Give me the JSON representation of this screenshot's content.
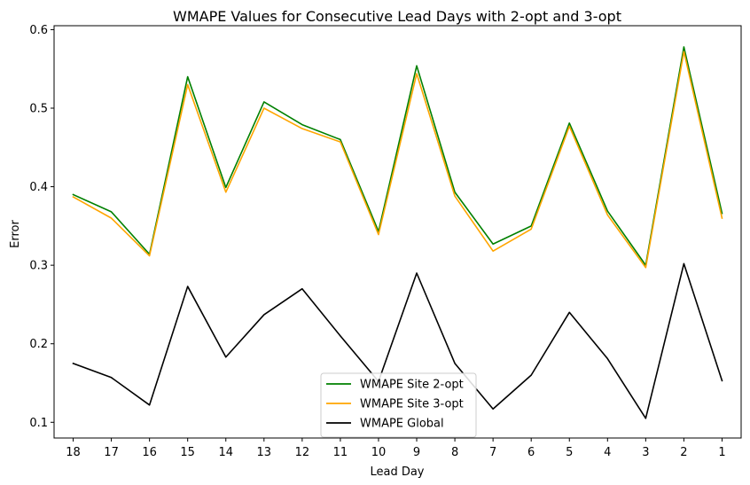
{
  "chart_data": {
    "type": "line",
    "title": "WMAPE Values for Consecutive Lead Days with 2-opt and 3-opt",
    "xlabel": "Lead Day",
    "ylabel": "Error",
    "categories": [
      "18",
      "17",
      "16",
      "15",
      "14",
      "13",
      "12",
      "11",
      "10",
      "9",
      "8",
      "7",
      "6",
      "5",
      "4",
      "3",
      "2",
      "1"
    ],
    "ylim": [
      0.08,
      0.605
    ],
    "yticks": [
      0.1,
      0.2,
      0.3,
      0.4,
      0.5,
      0.6
    ],
    "ytick_labels": [
      "0.1",
      "0.2",
      "0.3",
      "0.4",
      "0.5",
      "0.6"
    ],
    "grid": false,
    "legend_position": "bottom-center",
    "series": [
      {
        "name": "WMAPE Site 2-opt",
        "color": "#008000",
        "values": [
          0.39,
          0.368,
          0.314,
          0.54,
          0.399,
          0.508,
          0.479,
          0.46,
          0.343,
          0.554,
          0.393,
          0.327,
          0.35,
          0.481,
          0.369,
          0.3,
          0.578,
          0.366
        ]
      },
      {
        "name": "WMAPE Site 3-opt",
        "color": "#FFA500",
        "values": [
          0.387,
          0.36,
          0.312,
          0.53,
          0.393,
          0.5,
          0.474,
          0.457,
          0.339,
          0.544,
          0.388,
          0.318,
          0.346,
          0.477,
          0.364,
          0.297,
          0.572,
          0.36
        ]
      },
      {
        "name": "WMAPE Global",
        "color": "#000000",
        "values": [
          0.175,
          0.157,
          0.122,
          0.273,
          0.183,
          0.237,
          0.27,
          0.21,
          0.152,
          0.29,
          0.175,
          0.117,
          0.16,
          0.24,
          0.181,
          0.105,
          0.302,
          0.153
        ]
      }
    ]
  }
}
